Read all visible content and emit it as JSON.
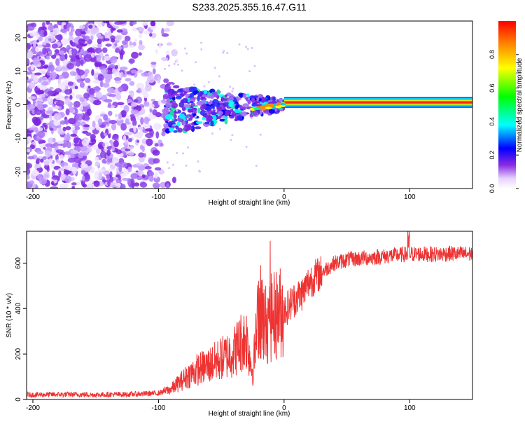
{
  "title": "S233.2025.355.16.47.G11",
  "chart_data": [
    {
      "type": "heatmap",
      "name": "spectrogram",
      "xlabel": "Height of straight line (km)",
      "ylabel": "Frequency (Hz)",
      "xlim": [
        -205,
        150
      ],
      "ylim": [
        -25,
        25
      ],
      "x_ticks": [
        -200,
        -100,
        0,
        100
      ],
      "y_ticks": [
        -20,
        -10,
        0,
        10,
        20
      ],
      "colorbar": {
        "label": "Normalized spectral amplitude",
        "range": [
          0,
          1
        ],
        "ticks": [
          "0.0",
          "0.2",
          "0.4",
          "0.6",
          "0.8"
        ]
      },
      "features": {
        "carrier_start_km": 0,
        "carrier_frequency_hz": 0.7,
        "noise_region_end_km": -95,
        "transition_region_km": [
          -95,
          0
        ]
      }
    },
    {
      "type": "line",
      "name": "snr",
      "xlabel": "Height of straight line (km)",
      "ylabel": "SNR (10 * v/v)",
      "xlim": [
        -205,
        150
      ],
      "ylim": [
        0,
        740
      ],
      "x_ticks": [
        -200,
        -100,
        0,
        100
      ],
      "y_ticks": [
        0,
        200,
        400,
        600
      ],
      "series": [
        {
          "name": "SNR",
          "color": "#ee3333",
          "x": [
            -205,
            -180,
            -150,
            -120,
            -100,
            -90,
            -80,
            -70,
            -60,
            -50,
            -40,
            -35,
            -30,
            -25,
            -20,
            -15,
            -10,
            -5,
            0,
            5,
            10,
            15,
            20,
            30,
            40,
            50,
            60,
            70,
            80,
            90,
            100,
            110,
            120,
            130,
            140,
            150
          ],
          "values": [
            20,
            22,
            21,
            23,
            28,
            45,
            90,
            130,
            150,
            180,
            210,
            250,
            270,
            120,
            400,
            330,
            360,
            380,
            390,
            420,
            450,
            470,
            520,
            560,
            600,
            615,
            620,
            625,
            630,
            635,
            640,
            640,
            638,
            642,
            640,
            640
          ]
        }
      ]
    }
  ]
}
